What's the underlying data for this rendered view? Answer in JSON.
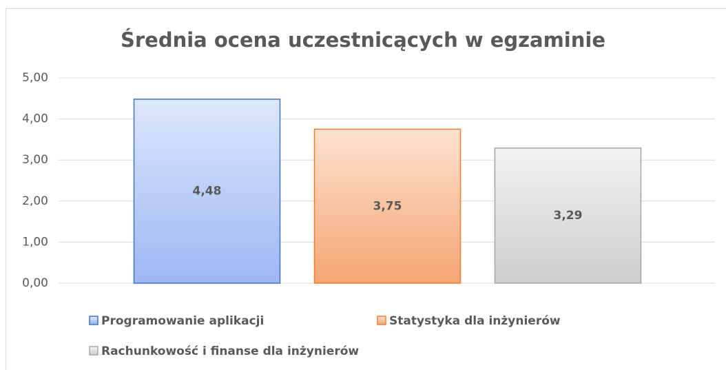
{
  "chart_data": {
    "type": "bar",
    "title": "Średnia ocena uczestnicących w egzaminie",
    "series": [
      {
        "name": "Programowanie aplikacji",
        "color": "#4472c4",
        "values": [
          4.48
        ],
        "value_labels": [
          "4,48"
        ]
      },
      {
        "name": "Statystyka dla inżynierów",
        "color": "#ed7d31",
        "values": [
          3.75
        ],
        "value_labels": [
          "3,75"
        ]
      },
      {
        "name": "Rachunkowość i finanse dla inżynierów",
        "color": "#a5a5a5",
        "values": [
          3.29
        ],
        "value_labels": [
          "3,29"
        ]
      }
    ],
    "ylim": [
      0,
      5
    ],
    "yticks": [
      {
        "value": 0,
        "label": "0,00"
      },
      {
        "value": 1,
        "label": "1,00"
      },
      {
        "value": 2,
        "label": "2,00"
      },
      {
        "value": 3,
        "label": "3,00"
      },
      {
        "value": 4,
        "label": "4,00"
      },
      {
        "value": 5,
        "label": "5,00"
      }
    ],
    "grid": true,
    "legend": "bottom"
  }
}
